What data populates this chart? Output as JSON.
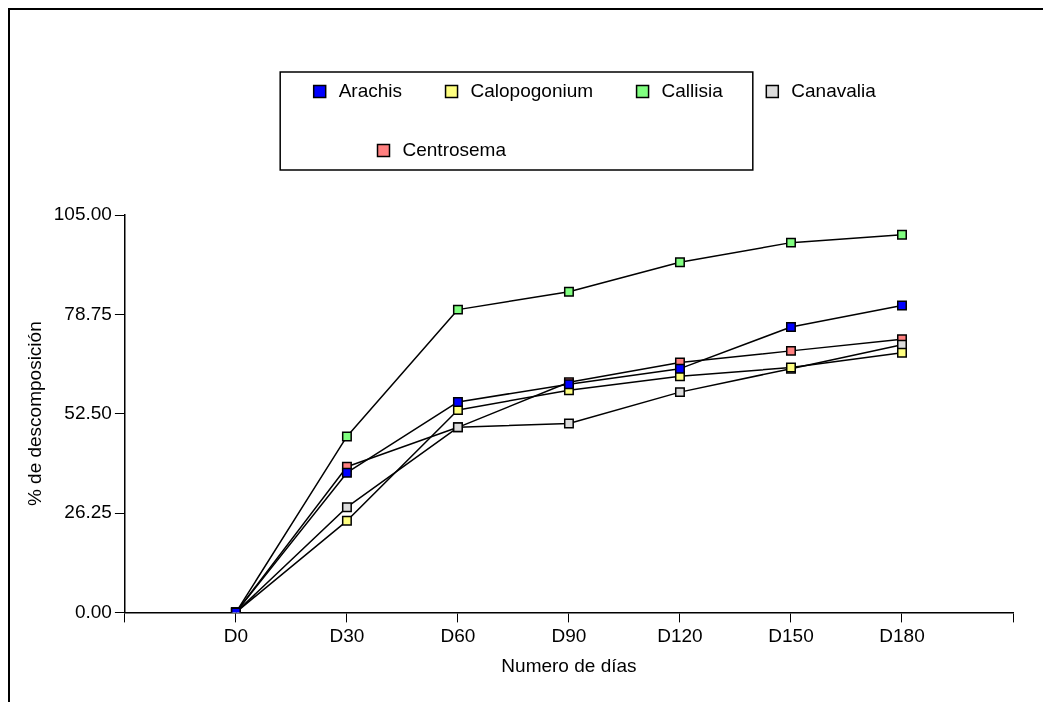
{
  "chart_data": {
    "type": "line",
    "xlabel": "Numero de días",
    "ylabel": "% de descomposición",
    "categories": [
      "D0",
      "D30",
      "D60",
      "D90",
      "D120",
      "D150",
      "D180"
    ],
    "series": [
      {
        "name": "Arachis",
        "color": "#0000ff",
        "values": [
          0,
          36.9,
          55.6,
          60.3,
          64.4,
          75.4,
          81.1
        ]
      },
      {
        "name": "Calopogonium",
        "color": "#ffff80",
        "values": [
          0,
          24.2,
          53.5,
          58.7,
          62.4,
          64.7,
          68.6
        ]
      },
      {
        "name": "Callisia",
        "color": "#80ff80",
        "values": [
          0,
          46.5,
          80.0,
          84.7,
          92.5,
          97.7,
          99.8
        ]
      },
      {
        "name": "Canavalia",
        "color": "#dcdcdc",
        "values": [
          0,
          27.8,
          48.9,
          49.9,
          58.2,
          64.4,
          70.7
        ]
      },
      {
        "name": "Centrosema",
        "color": "#ff8080",
        "values": [
          0,
          38.5,
          48.9,
          60.8,
          66.0,
          69.1,
          72.2
        ]
      }
    ],
    "ylim": [
      0,
      105
    ],
    "yticks": [
      {
        "value": 0,
        "label": "0.00"
      },
      {
        "value": 26.25,
        "label": "26.25"
      },
      {
        "value": 52.5,
        "label": "52.50"
      },
      {
        "value": 78.75,
        "label": "78.75"
      },
      {
        "value": 105,
        "label": "105.00"
      }
    ],
    "legend": "top",
    "marker": "square",
    "line_style": "solid",
    "grid": false
  }
}
